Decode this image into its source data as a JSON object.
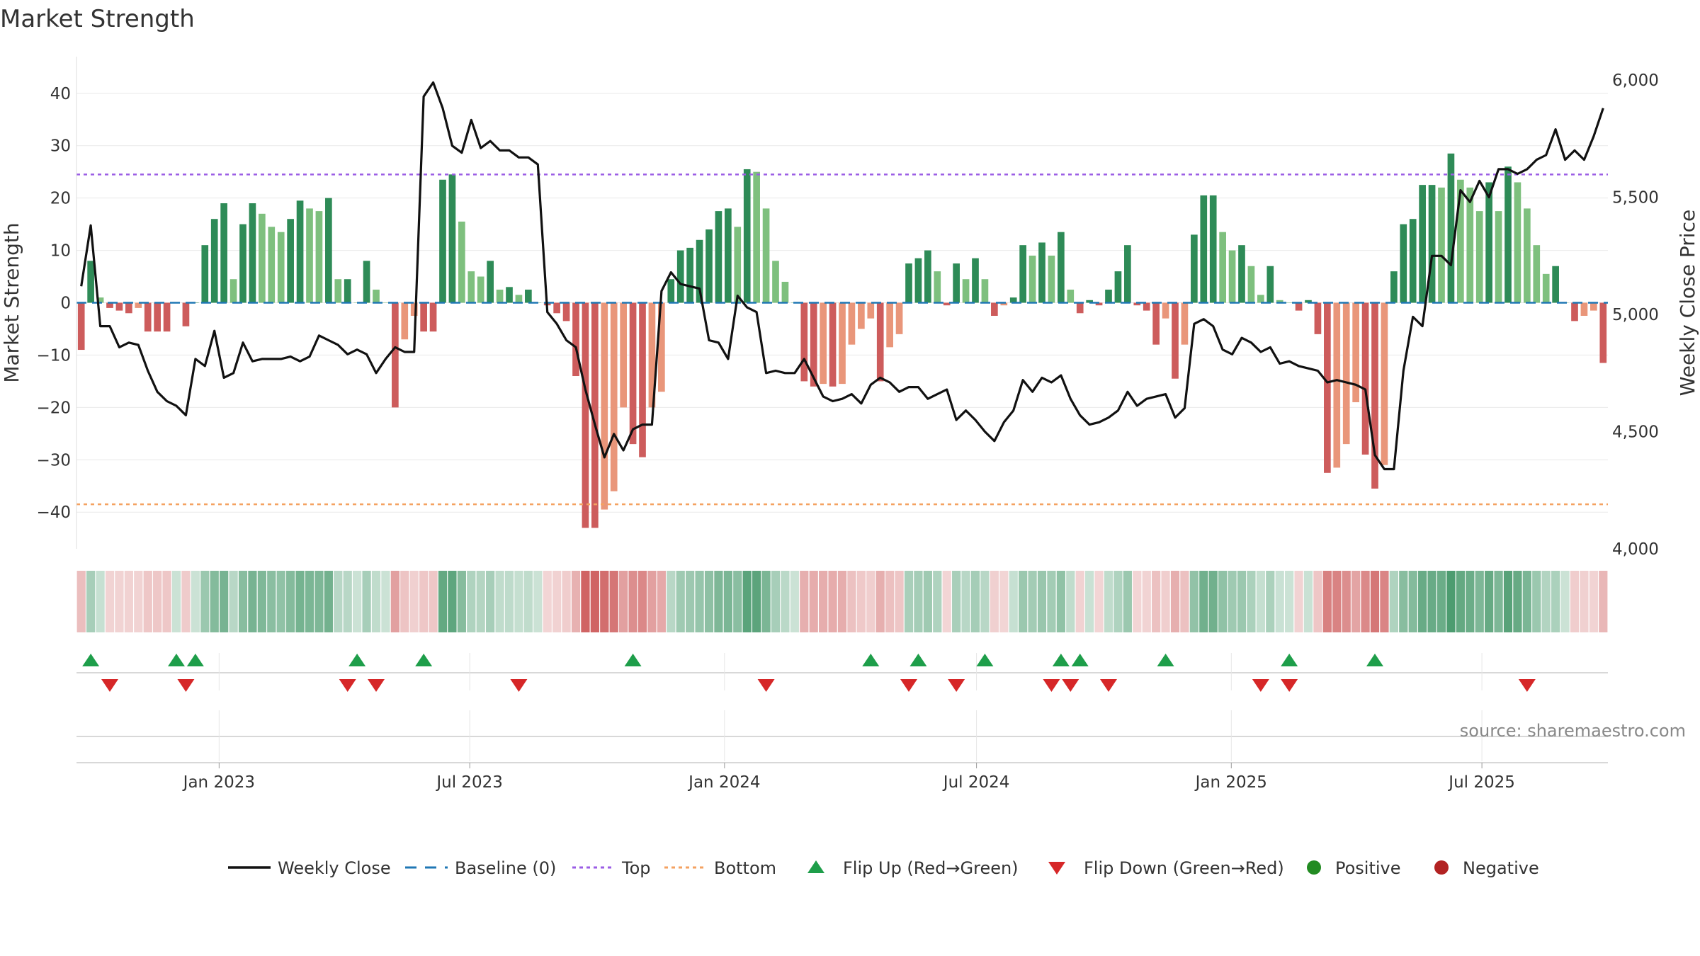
{
  "chart_data": {
    "title": "Market Strength",
    "type": "bar",
    "y_left_label": "Market Strength",
    "y_right_label": "Weekly Close Price",
    "source": "source: sharemaestro.com",
    "ylim_left": [
      -47,
      47
    ],
    "ylim_right": [
      4000,
      6100
    ],
    "yticks_left": [
      40,
      30,
      20,
      10,
      0,
      -10,
      -20,
      -30,
      -40
    ],
    "yticks_left_labels": [
      "40",
      "30",
      "20",
      "10",
      "0",
      "−10",
      "−20",
      "−30",
      "−40"
    ],
    "yticks_right": [
      6000,
      5500,
      5000,
      4500,
      4000
    ],
    "yticks_right_labels": [
      "6,000",
      "5,500",
      "5,000",
      "4,500",
      "4,000"
    ],
    "x_start": "2022-09-20",
    "x_end": "2025-09-30",
    "xticks": [
      "2023-01-01",
      "2023-07-01",
      "2024-01-01",
      "2024-07-01",
      "2025-01-01",
      "2025-07-01"
    ],
    "xtick_labels": [
      "Jan 2023",
      "Jul 2023",
      "Jan 2024",
      "Jul 2024",
      "Jan 2025",
      "Jul 2025"
    ],
    "top_threshold": 24.5,
    "bottom_threshold": -38.5,
    "grid": true,
    "legend_placement": "bottom",
    "colors": {
      "dark_green": "#2e8b57",
      "light_green": "#7ec07e",
      "dark_red": "#cd5c5c",
      "light_red": "#e9967a",
      "line": "#111111",
      "baseline": "#1f77b4",
      "top": "#9b5de5",
      "bottom": "#f4a261",
      "flip_up": "#1e9e4a",
      "flip_down": "#d62728",
      "positive": "#228b22",
      "negative": "#b22222"
    },
    "legend": [
      {
        "label": "Weekly Close",
        "kind": "line"
      },
      {
        "label": "Baseline (0)",
        "kind": "dash"
      },
      {
        "label": "Top",
        "kind": "dot-purple"
      },
      {
        "label": "Bottom",
        "kind": "dot-orange"
      },
      {
        "label": "Flip Up (Red→Green)",
        "kind": "tri-up"
      },
      {
        "label": "Flip Down (Green→Red)",
        "kind": "tri-down"
      },
      {
        "label": "Positive",
        "kind": "circle-pos"
      },
      {
        "label": "Negative",
        "kind": "circle-neg"
      }
    ],
    "strength": [
      -9,
      8,
      1,
      -1,
      -1.5,
      -2,
      -1,
      -5.5,
      -5.5,
      -5.5,
      0,
      -4.5,
      0,
      11,
      16,
      19,
      4.5,
      15,
      19,
      17,
      14.5,
      13.5,
      16,
      19.5,
      18,
      17.5,
      20,
      4.5,
      4.5,
      0,
      8,
      2.5,
      0,
      -20,
      -7,
      -2.5,
      -5.5,
      -5.5,
      23.5,
      24.5,
      15.5,
      6,
      5,
      8,
      2.5,
      3,
      1.5,
      2.5,
      0,
      -0.5,
      -2,
      -3.5,
      -14,
      -43,
      -43,
      -39.5,
      -36,
      -20,
      -27,
      -29.5,
      -20,
      -17,
      4.5,
      10,
      10.5,
      12,
      14,
      17.5,
      18,
      14.5,
      25.5,
      25,
      18,
      8,
      4,
      0,
      -15,
      -16,
      -15.5,
      -16,
      -15.5,
      -8,
      -5,
      -3,
      -15,
      -8.5,
      -6,
      7.5,
      8.5,
      10,
      6,
      -0.5,
      7.5,
      4.5,
      8.5,
      4.5,
      -2.5,
      -0.5,
      1,
      11,
      9,
      11.5,
      9,
      13.5,
      2.5,
      -2,
      0.5,
      -0.5,
      2.5,
      6,
      11,
      -0.5,
      -1.5,
      -8,
      -3,
      -14.5,
      -8,
      13,
      20.5,
      20.5,
      13.5,
      10,
      11,
      7,
      1.5,
      7,
      0.5,
      0,
      -1.5,
      0.5,
      -6,
      -32.5,
      -31.5,
      -27,
      -19,
      -29,
      -35.5,
      -31,
      6,
      15,
      16,
      22.5,
      22.5,
      22,
      28.5,
      23.5,
      22,
      17.5,
      23,
      17.5,
      26,
      23,
      18,
      11,
      5.5,
      7,
      0,
      -3.5,
      -2.5,
      -1.5,
      -11.5
    ],
    "close": [
      5120,
      5380,
      4950,
      4950,
      4860,
      4880,
      4870,
      4760,
      4670,
      4630,
      4610,
      4570,
      4810,
      4780,
      4930,
      4730,
      4750,
      4880,
      4800,
      4810,
      4810,
      4810,
      4820,
      4800,
      4820,
      4910,
      4890,
      4870,
      4830,
      4850,
      4830,
      4750,
      4810,
      4860,
      4840,
      4840,
      5930,
      5990,
      5880,
      5720,
      5690,
      5830,
      5710,
      5740,
      5700,
      5700,
      5670,
      5670,
      5640,
      5010,
      4960,
      4890,
      4860,
      4680,
      4530,
      4390,
      4490,
      4420,
      4510,
      4530,
      4530,
      5100,
      5180,
      5130,
      5120,
      5110,
      4890,
      4880,
      4810,
      5080,
      5030,
      5010,
      4750,
      4760,
      4750,
      4750,
      4810,
      4730,
      4650,
      4630,
      4640,
      4660,
      4620,
      4700,
      4730,
      4710,
      4670,
      4690,
      4690,
      4640,
      4660,
      4680,
      4550,
      4590,
      4550,
      4500,
      4460,
      4540,
      4590,
      4720,
      4670,
      4730,
      4710,
      4740,
      4640,
      4570,
      4530,
      4540,
      4560,
      4590,
      4670,
      4610,
      4640,
      4650,
      4660,
      4560,
      4600,
      4960,
      4980,
      4950,
      4850,
      4830,
      4900,
      4880,
      4840,
      4860,
      4790,
      4800,
      4780,
      4770,
      4760,
      4710,
      4720,
      4710,
      4700,
      4680,
      4400,
      4340,
      4340,
      4760,
      4990,
      4950,
      5250,
      5250,
      5210,
      5530,
      5480,
      5570,
      5500,
      5620,
      5620,
      5600,
      5620,
      5660,
      5680,
      5790,
      5660,
      5700,
      5660,
      5760,
      5880
    ],
    "flip_up_index": [
      1,
      10,
      12,
      29,
      36,
      58,
      83,
      88,
      95,
      103,
      105,
      114,
      127,
      136
    ],
    "flip_down_index": [
      3,
      11,
      28,
      31,
      46,
      72,
      87,
      92,
      102,
      104,
      108,
      124,
      127,
      152
    ]
  }
}
